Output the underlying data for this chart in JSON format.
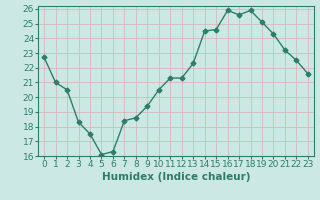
{
  "x": [
    0,
    1,
    2,
    3,
    4,
    5,
    6,
    7,
    8,
    9,
    10,
    11,
    12,
    13,
    14,
    15,
    16,
    17,
    18,
    19,
    20,
    21,
    22,
    23
  ],
  "y": [
    22.7,
    21.0,
    20.5,
    18.3,
    17.5,
    16.1,
    16.3,
    18.4,
    18.6,
    19.4,
    20.5,
    21.3,
    21.3,
    22.3,
    24.5,
    24.6,
    25.9,
    25.6,
    25.9,
    25.1,
    24.3,
    23.2,
    22.5,
    21.6
  ],
  "line_color": "#2e7d6b",
  "marker": "D",
  "marker_size": 2.5,
  "bg_color": "#cce8e4",
  "grid_color": "#d8b8b8",
  "axis_color": "#2e7d6b",
  "tick_color": "#2e7d6b",
  "xlabel": "Humidex (Indice chaleur)",
  "xlim": [
    -0.5,
    23.5
  ],
  "ylim": [
    16,
    26.2
  ],
  "yticks": [
    16,
    17,
    18,
    19,
    20,
    21,
    22,
    23,
    24,
    25,
    26
  ],
  "xticks": [
    0,
    1,
    2,
    3,
    4,
    5,
    6,
    7,
    8,
    9,
    10,
    11,
    12,
    13,
    14,
    15,
    16,
    17,
    18,
    19,
    20,
    21,
    22,
    23
  ],
  "xlabel_fontsize": 7.5,
  "tick_fontsize": 6.5,
  "line_width": 1.0
}
